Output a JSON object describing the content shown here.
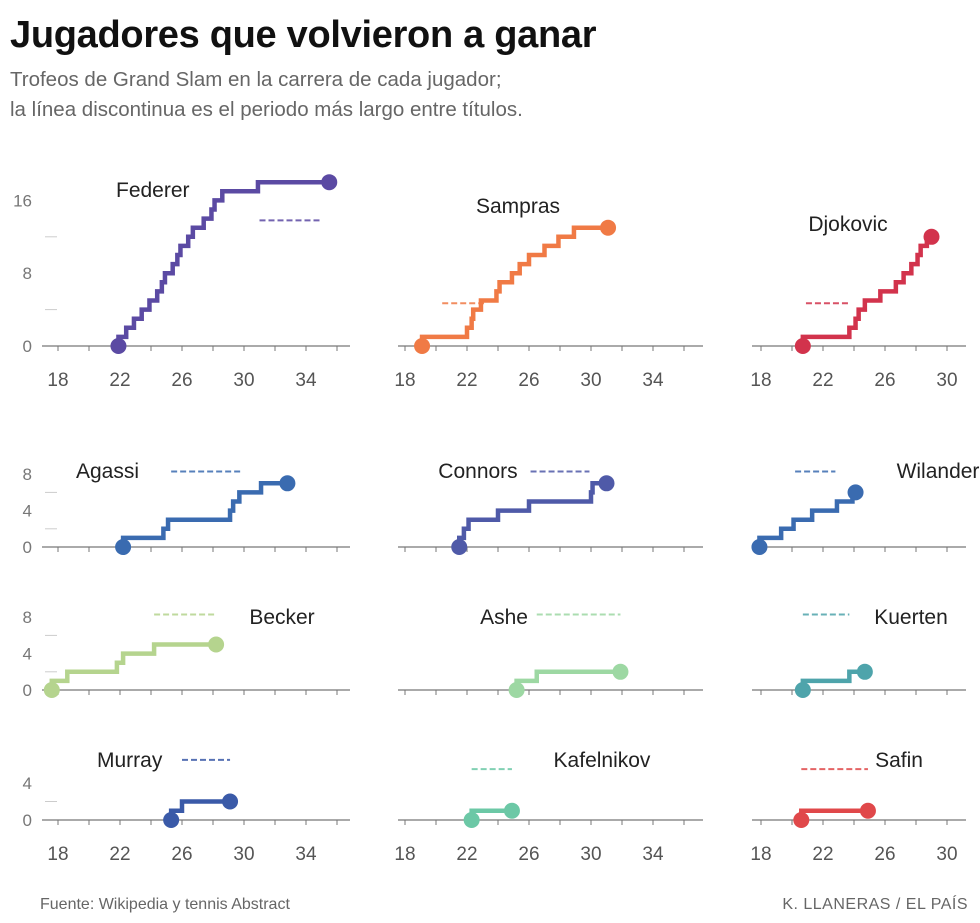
{
  "header": {
    "title": "Jugadores que volvieron a ganar",
    "subtitle_line1": "Trofeos de Grand Slam en la carrera de cada jugador;",
    "subtitle_line2": "la línea discontinua es el periodo más largo entre títulos."
  },
  "footer": {
    "source": "Fuente: Wikipedia y tennis Abstract",
    "credit": "K. LLANERAS / EL PAÍS"
  },
  "chart_data": {
    "type": "line",
    "step": true,
    "x_unit": "edad",
    "panels": [
      {
        "name": "Federer",
        "color": "#5b4aa3",
        "xlim": [
          16,
          36
        ],
        "xticks": [
          18,
          22,
          26,
          30,
          34
        ],
        "ylim": [
          0,
          16
        ],
        "yticks": [
          0,
          8,
          16
        ],
        "ages": [
          21.9,
          22.4,
          22.9,
          23.4,
          23.9,
          24.4,
          24.7,
          24.9,
          25.4,
          25.7,
          25.9,
          26.4,
          26.7,
          27.4,
          27.9,
          28.1,
          28.6,
          30.9,
          35.5
        ],
        "gap_level": 13.8,
        "gap": [
          31,
          35
        ]
      },
      {
        "name": "Sampras",
        "color": "#f07a45",
        "xlim": [
          17,
          36
        ],
        "xticks": [
          18,
          22,
          26,
          30,
          34
        ],
        "ylim": [
          0,
          16
        ],
        "yticks": [
          0,
          8,
          16
        ],
        "ages": [
          19.1,
          22.0,
          22.3,
          22.4,
          22.9,
          23.9,
          24.1,
          24.9,
          25.4,
          26.0,
          27.0,
          27.9,
          28.9,
          31.1
        ],
        "gap_level": 4.7,
        "gap": [
          20.4,
          23.1
        ]
      },
      {
        "name": "Djokovic",
        "color": "#d2334c",
        "xlim": [
          17,
          30.5
        ],
        "xticks": [
          18,
          22,
          26,
          30
        ],
        "ylim": [
          0,
          16
        ],
        "yticks": [
          0,
          8,
          16
        ],
        "ages": [
          20.7,
          23.7,
          24.1,
          24.3,
          24.7,
          25.7,
          26.7,
          27.2,
          27.7,
          28.1,
          28.3,
          28.7,
          29.0
        ],
        "gap_level": 4.7,
        "gap": [
          20.9,
          23.7
        ]
      },
      {
        "name": "Agassi",
        "color": "#3a6bb0",
        "xlim": [
          16,
          36
        ],
        "xticks": [
          18,
          22,
          26,
          30,
          34
        ],
        "ylim": [
          0,
          8
        ],
        "yticks": [
          0,
          4,
          8
        ],
        "ages": [
          22.2,
          24.8,
          25.1,
          29.1,
          29.3,
          29.7,
          31.1,
          32.8
        ],
        "gap_level": 8.3,
        "gap": [
          25.3,
          29.8
        ]
      },
      {
        "name": "Connors",
        "color": "#4f5aa8",
        "xlim": [
          17,
          36
        ],
        "xticks": [
          18,
          22,
          26,
          30,
          34
        ],
        "ylim": [
          0,
          8
        ],
        "yticks": [
          0,
          4,
          8
        ],
        "ages": [
          21.5,
          21.8,
          22.1,
          24.0,
          26.0,
          30.0,
          30.1,
          31.0
        ],
        "gap_level": 8.3,
        "gap": [
          26.1,
          29.9
        ]
      },
      {
        "name": "Wilander",
        "color": "#3a6bb0",
        "xlim": [
          17,
          30.5
        ],
        "xticks": [
          18,
          22,
          26,
          30
        ],
        "ylim": [
          0,
          8
        ],
        "yticks": [
          0,
          4,
          8
        ],
        "ages": [
          17.9,
          19.3,
          20.1,
          21.3,
          22.9,
          23.9,
          24.1
        ],
        "gap_level": 8.3,
        "gap": [
          20.2,
          22.8
        ]
      },
      {
        "name": "Becker",
        "color": "#b5d48e",
        "xlim": [
          16,
          36
        ],
        "xticks": [
          18,
          22,
          26,
          30,
          34
        ],
        "ylim": [
          0,
          8
        ],
        "yticks": [
          0,
          4,
          8
        ],
        "ages": [
          17.6,
          18.6,
          21.8,
          22.2,
          24.2,
          28.2
        ],
        "gap_level": 8.3,
        "gap": [
          24.2,
          28.2
        ]
      },
      {
        "name": "Ashe",
        "color": "#9dd8a3",
        "xlim": [
          17,
          36
        ],
        "xticks": [
          18,
          22,
          26,
          30,
          34
        ],
        "ylim": [
          0,
          8
        ],
        "yticks": [
          0,
          4,
          8
        ],
        "ages": [
          25.2,
          26.5,
          31.9
        ],
        "gap_level": 8.3,
        "gap": [
          26.5,
          31.9
        ]
      },
      {
        "name": "Kuerten",
        "color": "#4ea4ab",
        "xlim": [
          17,
          30.5
        ],
        "xticks": [
          18,
          22,
          26,
          30
        ],
        "ylim": [
          0,
          8
        ],
        "yticks": [
          0,
          4,
          8
        ],
        "ages": [
          20.7,
          23.7,
          24.7
        ],
        "gap_level": 8.3,
        "gap": [
          20.7,
          23.7
        ]
      },
      {
        "name": "Murray",
        "color": "#3a5aa8",
        "xlim": [
          16,
          36
        ],
        "xticks": [
          18,
          22,
          26,
          30,
          34
        ],
        "ylim": [
          0,
          6
        ],
        "yticks": [
          0,
          4
        ],
        "ages": [
          25.3,
          26.0,
          29.1
        ],
        "gap_level": 6.5,
        "gap": [
          26.0,
          29.1
        ]
      },
      {
        "name": "Kafelnikov",
        "color": "#6cc8a6",
        "xlim": [
          17,
          36
        ],
        "xticks": [
          18,
          22,
          26,
          30,
          34
        ],
        "ylim": [
          0,
          6
        ],
        "yticks": [
          0,
          4
        ],
        "ages": [
          22.3,
          24.9
        ],
        "gap_level": 5.5,
        "gap": [
          22.3,
          24.9
        ]
      },
      {
        "name": "Safin",
        "color": "#e0484a",
        "xlim": [
          17,
          30.5
        ],
        "xticks": [
          18,
          22,
          26,
          30
        ],
        "ylim": [
          0,
          6
        ],
        "yticks": [
          0,
          4
        ],
        "ages": [
          20.6,
          24.9
        ],
        "gap_level": 5.5,
        "gap": [
          20.6,
          24.9
        ]
      }
    ]
  }
}
